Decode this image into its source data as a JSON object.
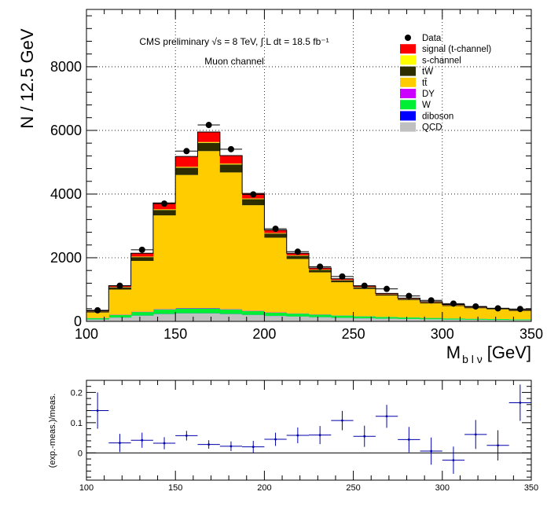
{
  "colors": {
    "signal": "#ff0000",
    "s_channel": "#ffff00",
    "tW": "#2d2d00",
    "ttbar": "#ffcc00",
    "DY": "#cc00ff",
    "W": "#00ee33",
    "diboson": "#0000ff",
    "QCD": "#c0c0c0",
    "data": "#000000",
    "ratio_marker": "#0000aa"
  },
  "chart_data": [
    {
      "type": "bar",
      "stacked": true,
      "annotations": {
        "line1": "CMS preliminary √s = 8 TeV, ∫ L dt = 18.5 fb⁻¹",
        "line2": "Muon channel"
      },
      "xlabel": "M_{b l ν} [GeV]",
      "xlabel_main": "M",
      "xlabel_sub": "b l ν",
      "xlabel_unit": "[GeV]",
      "ylabel": "N / 12.5 GeV",
      "xlim": [
        100,
        350
      ],
      "ylim": [
        0,
        9800
      ],
      "xticks": [
        100,
        150,
        200,
        250,
        300,
        350
      ],
      "yticks": [
        0,
        2000,
        4000,
        6000,
        8000
      ],
      "grid": true,
      "legend_position": "top-right",
      "bin_edges": [
        100,
        112.5,
        125,
        137.5,
        150,
        162.5,
        175,
        187.5,
        200,
        212.5,
        225,
        237.5,
        250,
        262.5,
        275,
        287.5,
        300,
        312.5,
        325,
        337.5,
        350
      ],
      "series": [
        {
          "name": "QCD",
          "key": "QCD",
          "values": [
            60,
            120,
            180,
            230,
            250,
            250,
            230,
            200,
            170,
            150,
            130,
            110,
            95,
            85,
            75,
            65,
            55,
            50,
            45,
            40
          ]
        },
        {
          "name": "diboson",
          "key": "diboson",
          "values": [
            2,
            3,
            4,
            5,
            6,
            6,
            5,
            5,
            4,
            4,
            3,
            3,
            3,
            2,
            2,
            2,
            2,
            1,
            1,
            1
          ]
        },
        {
          "name": "W",
          "key": "W",
          "values": [
            40,
            80,
            110,
            140,
            150,
            150,
            140,
            120,
            100,
            90,
            80,
            70,
            60,
            50,
            45,
            40,
            35,
            30,
            28,
            25
          ]
        },
        {
          "name": "DY",
          "key": "DY",
          "values": [
            5,
            8,
            10,
            12,
            14,
            14,
            12,
            10,
            9,
            8,
            7,
            6,
            5,
            4,
            4,
            3,
            3,
            3,
            2,
            2
          ]
        },
        {
          "name": "tt̄",
          "key": "ttbar",
          "values": [
            173,
            789,
            1596,
            2943,
            4180,
            4930,
            4293,
            3315,
            2347,
            1708,
            1320,
            1041,
            857,
            669,
            545,
            455,
            387,
            328,
            294,
            262
          ]
        },
        {
          "name": "tW",
          "key": "tW",
          "values": [
            30,
            70,
            120,
            170,
            230,
            260,
            250,
            190,
            130,
            100,
            80,
            60,
            50,
            40,
            35,
            30,
            25,
            22,
            20,
            18
          ]
        },
        {
          "name": "s-channel",
          "key": "s_channel",
          "values": [
            5,
            10,
            15,
            20,
            25,
            25,
            25,
            20,
            15,
            15,
            10,
            10,
            10,
            5,
            5,
            5,
            5,
            5,
            5,
            5
          ]
        },
        {
          "name": "signal (t-channel)",
          "key": "signal",
          "values": [
            15,
            40,
            105,
            200,
            325,
            315,
            255,
            160,
            95,
            65,
            50,
            40,
            30,
            25,
            19,
            20,
            18,
            16,
            15,
            12
          ]
        }
      ],
      "data": {
        "name": "Data",
        "values": [
          350,
          1120,
          2250,
          3700,
          5350,
          6170,
          5410,
          3990,
          2910,
          2190,
          1720,
          1410,
          1120,
          1020,
          800,
          660,
          560,
          470,
          410,
          390
        ],
        "errors": [
          19,
          33,
          47,
          61,
          73,
          79,
          74,
          63,
          54,
          47,
          41,
          38,
          33,
          32,
          28,
          26,
          24,
          22,
          20,
          20
        ]
      }
    },
    {
      "type": "scatter",
      "ylabel": "(exp.-meas.)/meas.",
      "xlim": [
        100,
        350
      ],
      "ylim": [
        -0.09,
        0.24
      ],
      "xticks": [
        100,
        150,
        200,
        250,
        300,
        350
      ],
      "yticks": [
        0,
        0.1,
        0.2
      ],
      "x": [
        106.25,
        118.75,
        131.25,
        143.75,
        156.25,
        168.75,
        181.25,
        193.75,
        206.25,
        218.75,
        231.25,
        243.75,
        256.25,
        268.75,
        281.25,
        293.75,
        306.25,
        318.75,
        331.25,
        343.75
      ],
      "y": [
        0.14,
        0.033,
        0.042,
        0.032,
        0.057,
        0.028,
        0.022,
        0.02,
        0.045,
        0.058,
        0.059,
        0.107,
        0.055,
        0.121,
        0.044,
        0.006,
        -0.024,
        0.061,
        0.025,
        0.166
      ],
      "yerr": [
        0.06,
        0.03,
        0.025,
        0.02,
        0.016,
        0.014,
        0.016,
        0.02,
        0.022,
        0.026,
        0.03,
        0.032,
        0.035,
        0.038,
        0.042,
        0.045,
        0.045,
        0.048,
        0.05,
        0.06
      ]
    }
  ]
}
